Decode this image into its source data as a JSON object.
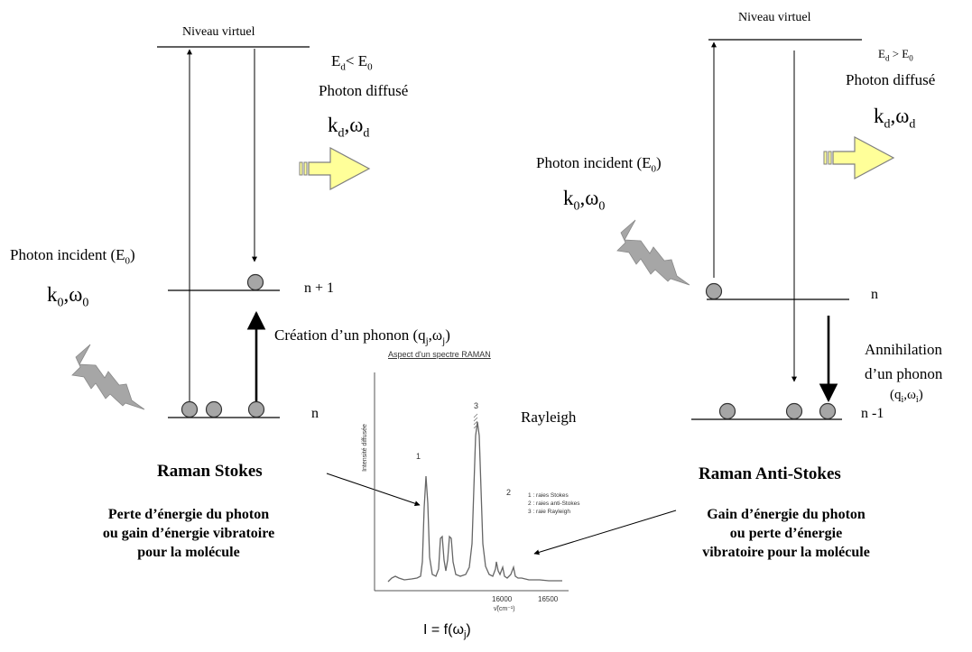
{
  "left": {
    "virtual_level": "Niveau virtuel",
    "energy_cond": {
      "main": "E",
      "sub1": "d",
      "mid": "< E",
      "sub2": "0"
    },
    "scattered_photon": "Photon diffusé",
    "k_omega_d": {
      "k": "k",
      "ks": "d",
      "w": ",ω",
      "ws": "d"
    },
    "incident_photon": {
      "main": "Photon incident (E",
      "sub": "0",
      "end": ")"
    },
    "k_omega_0": {
      "k": "k",
      "ks": "0",
      "w": ",ω",
      "ws": "0"
    },
    "level_n1": "n + 1",
    "level_n": "n",
    "phonon_creation": {
      "main": "Création d’un phonon (q",
      "sub1": "j",
      "mid": ",ω",
      "sub2": "j",
      "end": ")"
    },
    "title": "Raman Stokes",
    "desc": [
      "Perte d’énergie du photon",
      "ou gain d’énergie vibratoire",
      "pour la molécule"
    ]
  },
  "right": {
    "virtual_level": "Niveau virtuel",
    "energy_cond": {
      "main": "E",
      "sub1": "d",
      "mid": " > E",
      "sub2": "0"
    },
    "scattered_photon": "Photon diffusé",
    "k_omega_d": {
      "k": "k",
      "ks": "d",
      "w": ",ω",
      "ws": "d"
    },
    "incident_photon": {
      "main": "Photon incident (E",
      "sub": "0",
      "end": ")"
    },
    "k_omega_0": {
      "k": "k",
      "ks": "0",
      "w": ",ω",
      "ws": "0"
    },
    "level_n": "n",
    "level_n_minus": "n -1",
    "phonon_annihilation": [
      "Annihilation",
      "d’un phonon"
    ],
    "phonon_params": {
      "open": "(q",
      "sub1": "i",
      "mid": ",ω",
      "sub2": "i",
      "end": ")"
    },
    "title": "Raman Anti-Stokes",
    "desc": [
      "Gain d’énergie du photon",
      "ou perte d’énergie",
      "vibratoire pour la molécule"
    ]
  },
  "rayleigh": "Rayleigh",
  "spectrum": {
    "title": "Aspect d'un spectre RAMAN",
    "ylabel": "Intensité diffusée",
    "xlabel": "ν̃(cm⁻¹)",
    "xticks": [
      "16000",
      "16500"
    ],
    "peak_labels": [
      "1",
      "3",
      "2"
    ],
    "legend": [
      "1 : raies Stokes",
      "2 : raies anti-Stokes",
      "3 : raie Rayleigh"
    ]
  },
  "formula": {
    "main": "I = f(ω",
    "sub": "j",
    "end": ")"
  },
  "colors": {
    "line": "#000000",
    "ball_fill": "#a6a6a6",
    "arrow_fill": "#ffff99",
    "arrow_stroke": "#7f7f7f"
  }
}
